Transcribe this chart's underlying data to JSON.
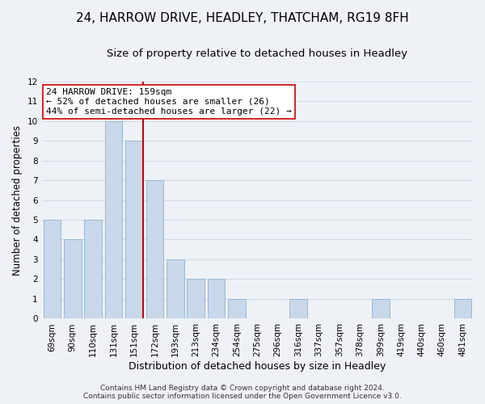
{
  "title1": "24, HARROW DRIVE, HEADLEY, THATCHAM, RG19 8FH",
  "title2": "Size of property relative to detached houses in Headley",
  "xlabel": "Distribution of detached houses by size in Headley",
  "ylabel": "Number of detached properties",
  "categories": [
    "69sqm",
    "90sqm",
    "110sqm",
    "131sqm",
    "151sqm",
    "172sqm",
    "193sqm",
    "213sqm",
    "234sqm",
    "254sqm",
    "275sqm",
    "296sqm",
    "316sqm",
    "337sqm",
    "357sqm",
    "378sqm",
    "399sqm",
    "419sqm",
    "440sqm",
    "460sqm",
    "481sqm"
  ],
  "values": [
    5,
    4,
    5,
    10,
    9,
    7,
    3,
    2,
    2,
    1,
    0,
    0,
    1,
    0,
    0,
    0,
    1,
    0,
    0,
    0,
    1
  ],
  "bar_color": "#c8d8ea",
  "bar_edge_color": "#9ab8d0",
  "vline_color": "#cc0000",
  "vline_index": 4,
  "annotation_title": "24 HARROW DRIVE: 159sqm",
  "annotation_line1": "← 52% of detached houses are smaller (26)",
  "annotation_line2": "44% of semi-detached houses are larger (22) →",
  "annotation_box_color": "white",
  "annotation_box_edge": "#cc0000",
  "ylim": [
    0,
    12
  ],
  "yticks": [
    0,
    1,
    2,
    3,
    4,
    5,
    6,
    7,
    8,
    9,
    10,
    11,
    12
  ],
  "footer1": "Contains HM Land Registry data © Crown copyright and database right 2024.",
  "footer2": "Contains public sector information licensed under the Open Government Licence v3.0.",
  "bg_color": "#eef2f7",
  "grid_color": "#d0dce8",
  "title1_fontsize": 11,
  "title2_fontsize": 9.5,
  "xlabel_fontsize": 9,
  "ylabel_fontsize": 8.5,
  "tick_fontsize": 7.5,
  "annotation_fontsize": 8,
  "footer_fontsize": 6.5
}
